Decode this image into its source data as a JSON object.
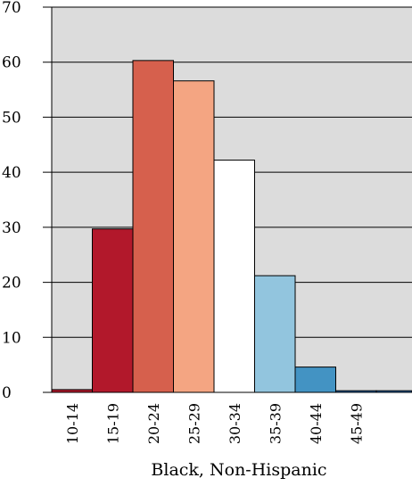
{
  "chart_data": {
    "type": "bar",
    "title": "",
    "xlabel": "Black, Non-Hispanic",
    "ylabel": "",
    "ylim": [
      0,
      70
    ],
    "yticks": [
      0,
      10,
      20,
      30,
      40,
      50,
      60,
      70
    ],
    "grid": true,
    "background": "#dcdcdc",
    "categories": [
      "10-14",
      "15-19",
      "20-24",
      "25-29",
      "30-34",
      "35-39",
      "40-44",
      "45-49"
    ],
    "values": [
      0.5,
      29.7,
      60.3,
      56.6,
      42.2,
      21.2,
      4.6,
      0.3
    ],
    "extra_bar_value": 0.3,
    "colors": [
      "#b2182b",
      "#b2182b",
      "#d6604d",
      "#f4a582",
      "#ffffff",
      "#92c5de",
      "#4393c3",
      "#2166ac",
      "#2166ac"
    ]
  }
}
